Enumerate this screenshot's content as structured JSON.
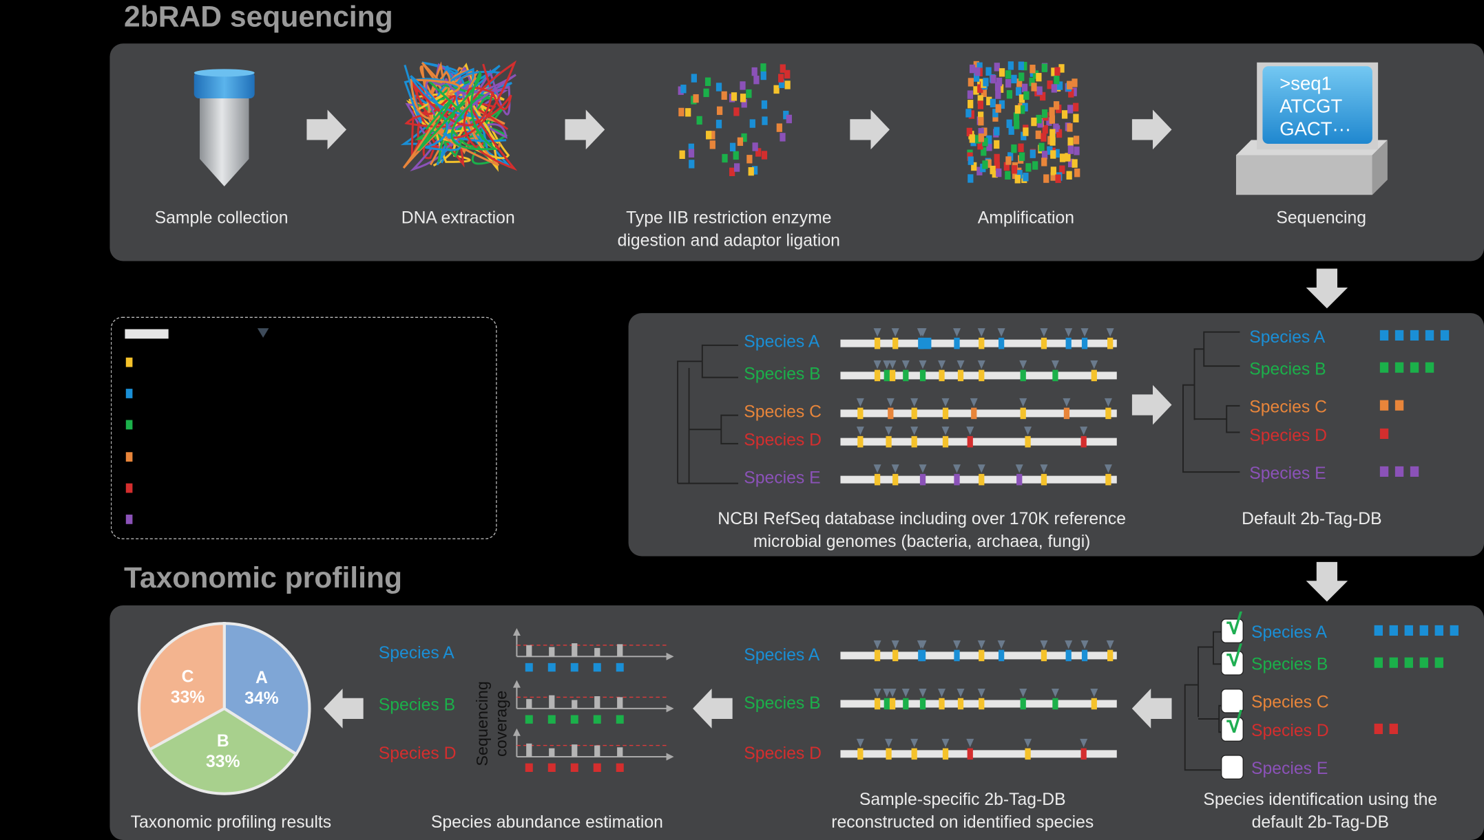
{
  "section_titles": {
    "top": "2bRAD sequencing",
    "bottom": "Taxonomic profiling"
  },
  "steps": [
    {
      "label": "Sample collection"
    },
    {
      "label": "DNA extraction"
    },
    {
      "label": "Type IIB restriction enzyme digestion and adaptor ligation"
    },
    {
      "label": "Amplification"
    },
    {
      "label": "Sequencing"
    }
  ],
  "sequencing_screen": {
    "line1": ">seq1",
    "line2": "ATCGT",
    "line3": "GACT···"
  },
  "species": [
    {
      "name": "Species A",
      "color": "#1a8fd6"
    },
    {
      "name": "Species B",
      "color": "#1bb04a"
    },
    {
      "name": "Species C",
      "color": "#e8853a"
    },
    {
      "name": "Species D",
      "color": "#d42e2e"
    },
    {
      "name": "Species E",
      "color": "#8b52b8"
    }
  ],
  "tag_color": "#f5c22b",
  "database": {
    "refseq_label": "NCBI RefSeq database including over 170K reference microbial genomes (bacteria, archaea, fungi)",
    "default_db_label": "Default 2b-Tag-DB",
    "default_db_counts": [
      5,
      4,
      2,
      1,
      3
    ]
  },
  "profiling": {
    "identification_label": "Species identification using the default 2b-Tag-DB",
    "identified": [
      true,
      true,
      false,
      true,
      false
    ],
    "identified_tag_counts": [
      6,
      5,
      0,
      2,
      0
    ],
    "sample_db_label": "Sample-specific 2b-Tag-DB reconstructed on identified species",
    "abundance_label": "Species abundance estimation",
    "coverage_axis": "Sequencing coverage",
    "results_label": "Taxonomic profiling results"
  },
  "chart_data": {
    "type": "pie",
    "title": "",
    "slices": [
      {
        "letter": "A",
        "value": 34,
        "text": "34%",
        "color": "#7fa6d6"
      },
      {
        "letter": "B",
        "value": 33,
        "text": "33%",
        "color": "#a8d08d"
      },
      {
        "letter": "C",
        "value": 33,
        "text": "33%",
        "color": "#f3b48f"
      }
    ]
  }
}
